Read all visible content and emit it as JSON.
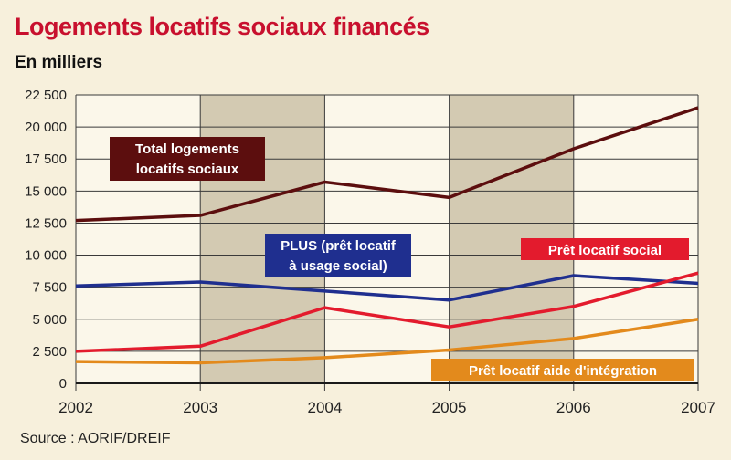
{
  "chart_data": {
    "type": "line",
    "title": "Logements locatifs sociaux financés",
    "ylabel": "En milliers",
    "source": "Source : AORIF/DREIF",
    "x": [
      "2002",
      "2003",
      "2004",
      "2005",
      "2006",
      "2007"
    ],
    "yticks": [
      "0",
      "2 500",
      "5 000",
      "7 500",
      "10 000",
      "12 500",
      "15 000",
      "17 500",
      "20 000",
      "22 500"
    ],
    "ylim": [
      0,
      22500
    ],
    "grid": true,
    "series": [
      {
        "name": "Total logements locatifs sociaux",
        "label_lines": [
          "Total logements",
          "locatifs sociaux"
        ],
        "color": "#5c0e0e",
        "values": [
          12700,
          13100,
          15700,
          14500,
          18300,
          21500
        ]
      },
      {
        "name": "PLUS (prêt locatif à usage social)",
        "label_lines": [
          "PLUS (prêt locatif",
          "à usage social)"
        ],
        "color": "#1f2f8f",
        "values": [
          7600,
          7900,
          7200,
          6500,
          8400,
          7800
        ]
      },
      {
        "name": "Prêt locatif social",
        "label_lines": [
          "Prêt locatif social"
        ],
        "color": "#e31b2d",
        "values": [
          2500,
          2900,
          5900,
          4400,
          6000,
          8600
        ]
      },
      {
        "name": "Prêt locatif aide d'intégration",
        "label_lines": [
          "Prêt locatif aide d'intégration"
        ],
        "color": "#e38a1c",
        "values": [
          1700,
          1600,
          2000,
          2600,
          3500,
          5000
        ]
      }
    ]
  }
}
